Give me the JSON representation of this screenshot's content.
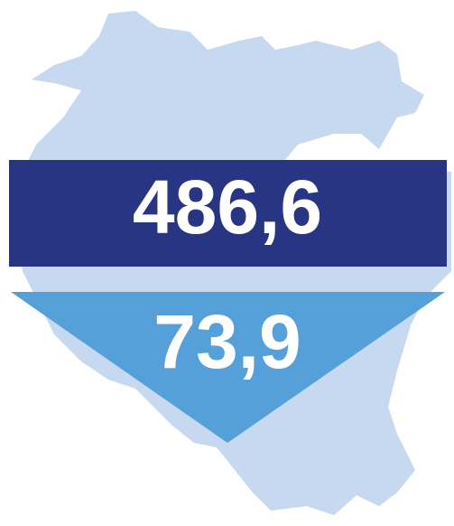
{
  "banner": {
    "value": "486,6"
  },
  "triangle": {
    "value": "73,9"
  }
}
